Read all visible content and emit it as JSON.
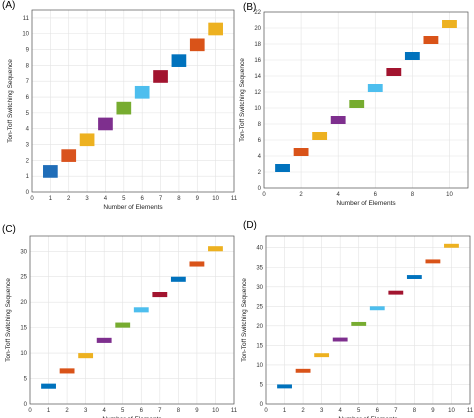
{
  "chart_data": [
    {
      "type": "bar",
      "panel": "(A)",
      "xlabel": "Number of Elements",
      "ylabel": "Ton-Toff Switching Sequence",
      "xlim": [
        0,
        11
      ],
      "ylim": [
        0,
        11.5
      ],
      "xticks": [
        0,
        1,
        2,
        3,
        4,
        5,
        6,
        7,
        8,
        9,
        10,
        11
      ],
      "yticks": [
        0,
        1,
        2,
        3,
        4,
        5,
        6,
        7,
        8,
        9,
        10,
        11
      ],
      "grid": true,
      "segments": [
        {
          "x": [
            0.6,
            1.4
          ],
          "y": [
            0.9,
            1.7
          ],
          "color": "#1f6db8"
        },
        {
          "x": [
            1.6,
            2.4
          ],
          "y": [
            1.9,
            2.7
          ],
          "color": "#d9531e"
        },
        {
          "x": [
            2.6,
            3.4
          ],
          "y": [
            2.9,
            3.7
          ],
          "color": "#edb120"
        },
        {
          "x": [
            3.6,
            4.4
          ],
          "y": [
            3.9,
            4.7
          ],
          "color": "#7e2f8e"
        },
        {
          "x": [
            4.6,
            5.4
          ],
          "y": [
            4.9,
            5.7
          ],
          "color": "#77ac30"
        },
        {
          "x": [
            5.6,
            6.4
          ],
          "y": [
            5.9,
            6.7
          ],
          "color": "#4dbeee"
        },
        {
          "x": [
            6.6,
            7.4
          ],
          "y": [
            6.9,
            7.7
          ],
          "color": "#a2142f"
        },
        {
          "x": [
            7.6,
            8.4
          ],
          "y": [
            7.9,
            8.7
          ],
          "color": "#0072bd"
        },
        {
          "x": [
            8.6,
            9.4
          ],
          "y": [
            8.9,
            9.7
          ],
          "color": "#d95319"
        },
        {
          "x": [
            9.6,
            10.4
          ],
          "y": [
            9.9,
            10.7
          ],
          "color": "#edb120"
        }
      ]
    },
    {
      "type": "bar",
      "panel": "(B)",
      "xlabel": "Number of Elements",
      "ylabel": "Ton-Toff Switching Sequence",
      "xlim": [
        0,
        11
      ],
      "ylim": [
        0,
        22
      ],
      "xticks": [
        0,
        2,
        4,
        6,
        8,
        10
      ],
      "yticks": [
        0,
        2,
        4,
        6,
        8,
        10,
        12,
        14,
        16,
        18,
        20,
        22
      ],
      "grid": true,
      "segments": [
        {
          "x": [
            0.6,
            1.4
          ],
          "y": [
            2.0,
            3.0
          ],
          "color": "#0072bd"
        },
        {
          "x": [
            1.6,
            2.4
          ],
          "y": [
            4.0,
            5.0
          ],
          "color": "#d95319"
        },
        {
          "x": [
            2.6,
            3.4
          ],
          "y": [
            6.0,
            7.0
          ],
          "color": "#edb120"
        },
        {
          "x": [
            3.6,
            4.4
          ],
          "y": [
            8.0,
            9.0
          ],
          "color": "#7e2f8e"
        },
        {
          "x": [
            4.6,
            5.4
          ],
          "y": [
            10.0,
            11.0
          ],
          "color": "#77ac30"
        },
        {
          "x": [
            5.6,
            6.4
          ],
          "y": [
            12.0,
            13.0
          ],
          "color": "#4dbeee"
        },
        {
          "x": [
            6.6,
            7.4
          ],
          "y": [
            14.0,
            15.0
          ],
          "color": "#a2142f"
        },
        {
          "x": [
            7.6,
            8.4
          ],
          "y": [
            16.0,
            17.0
          ],
          "color": "#0072bd"
        },
        {
          "x": [
            8.6,
            9.4
          ],
          "y": [
            18.0,
            19.0
          ],
          "color": "#d95319"
        },
        {
          "x": [
            9.6,
            10.4
          ],
          "y": [
            20.0,
            21.0
          ],
          "color": "#edb120"
        }
      ]
    },
    {
      "type": "bar",
      "panel": "(C)",
      "xlabel": "Number of Elements",
      "ylabel": "Ton-Toff Switching Sequence",
      "xlim": [
        0,
        11
      ],
      "ylim": [
        0,
        33
      ],
      "xticks": [
        0,
        1,
        2,
        3,
        4,
        5,
        6,
        7,
        8,
        9,
        10,
        11
      ],
      "yticks": [
        0,
        5,
        10,
        15,
        20,
        25,
        30
      ],
      "grid": true,
      "segments": [
        {
          "x": [
            0.6,
            1.4
          ],
          "y": [
            3.0,
            4.0
          ],
          "color": "#0072bd"
        },
        {
          "x": [
            1.6,
            2.4
          ],
          "y": [
            6.0,
            7.0
          ],
          "color": "#d95319"
        },
        {
          "x": [
            2.6,
            3.4
          ],
          "y": [
            9.0,
            10.0
          ],
          "color": "#edb120"
        },
        {
          "x": [
            3.6,
            4.4
          ],
          "y": [
            12.0,
            13.0
          ],
          "color": "#7e2f8e"
        },
        {
          "x": [
            4.6,
            5.4
          ],
          "y": [
            15.0,
            16.0
          ],
          "color": "#77ac30"
        },
        {
          "x": [
            5.6,
            6.4
          ],
          "y": [
            18.0,
            19.0
          ],
          "color": "#4dbeee"
        },
        {
          "x": [
            6.6,
            7.4
          ],
          "y": [
            21.0,
            22.0
          ],
          "color": "#a2142f"
        },
        {
          "x": [
            7.6,
            8.4
          ],
          "y": [
            24.0,
            25.0
          ],
          "color": "#0072bd"
        },
        {
          "x": [
            8.6,
            9.4
          ],
          "y": [
            27.0,
            28.0
          ],
          "color": "#d95319"
        },
        {
          "x": [
            9.6,
            10.4
          ],
          "y": [
            30.0,
            31.0
          ],
          "color": "#edb120"
        }
      ]
    },
    {
      "type": "bar",
      "panel": "(D)",
      "xlabel": "Number of Elements",
      "ylabel": "Ton-Toff Switching Sequence",
      "xlim": [
        0,
        11
      ],
      "ylim": [
        0,
        43
      ],
      "xticks": [
        0,
        1,
        2,
        3,
        4,
        5,
        6,
        7,
        8,
        9,
        10,
        11
      ],
      "yticks": [
        0,
        5,
        10,
        15,
        20,
        25,
        30,
        35,
        40
      ],
      "grid": true,
      "segments": [
        {
          "x": [
            0.6,
            1.4
          ],
          "y": [
            4.0,
            5.0
          ],
          "color": "#0072bd"
        },
        {
          "x": [
            1.6,
            2.4
          ],
          "y": [
            8.0,
            9.0
          ],
          "color": "#d95319"
        },
        {
          "x": [
            2.6,
            3.4
          ],
          "y": [
            12.0,
            13.0
          ],
          "color": "#edb120"
        },
        {
          "x": [
            3.6,
            4.4
          ],
          "y": [
            16.0,
            17.0
          ],
          "color": "#7e2f8e"
        },
        {
          "x": [
            4.6,
            5.4
          ],
          "y": [
            20.0,
            21.0
          ],
          "color": "#77ac30"
        },
        {
          "x": [
            5.6,
            6.4
          ],
          "y": [
            24.0,
            25.0
          ],
          "color": "#4dbeee"
        },
        {
          "x": [
            6.6,
            7.4
          ],
          "y": [
            28.0,
            29.0
          ],
          "color": "#a2142f"
        },
        {
          "x": [
            7.6,
            8.4
          ],
          "y": [
            32.0,
            33.0
          ],
          "color": "#0072bd"
        },
        {
          "x": [
            8.6,
            9.4
          ],
          "y": [
            36.0,
            37.0
          ],
          "color": "#d95319"
        },
        {
          "x": [
            9.6,
            10.4
          ],
          "y": [
            40.0,
            41.0
          ],
          "color": "#edb120"
        }
      ]
    }
  ]
}
